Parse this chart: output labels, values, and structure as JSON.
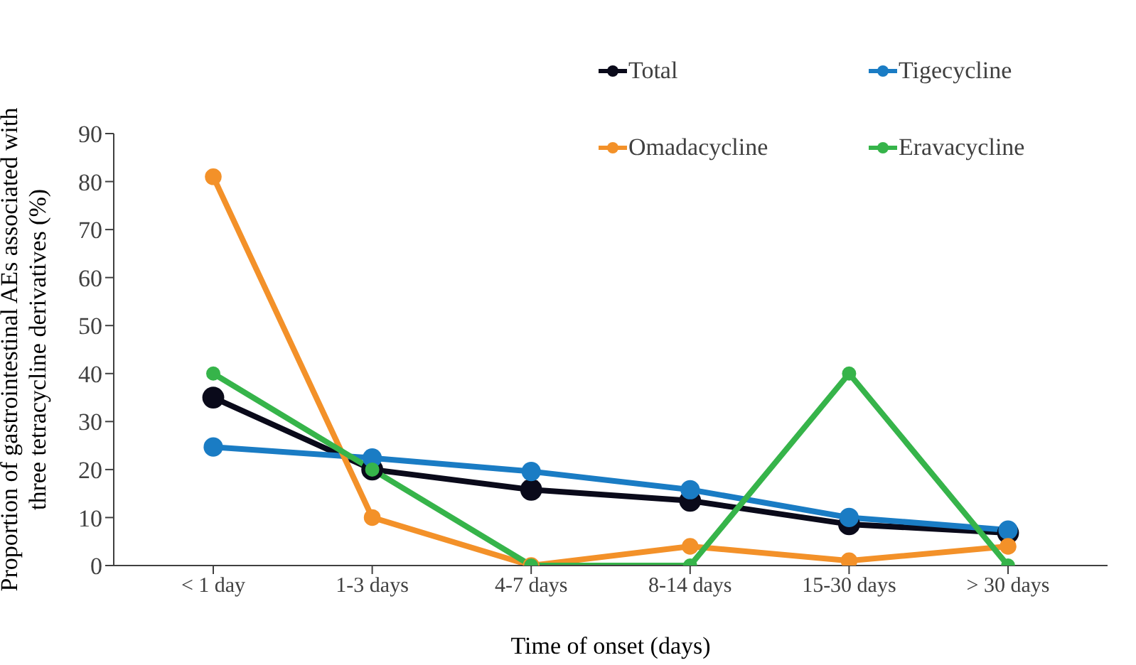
{
  "chart_data": {
    "type": "line",
    "xlabel": "Time of onset (days)",
    "ylabel": "Proportion of gastrointestinal AEs associated with three tetracycline derivatives (%)",
    "categories": [
      "< 1 day",
      "1-3 days",
      "4-7 days",
      "8-14 days",
      "15-30 days",
      "> 30 days"
    ],
    "series": [
      {
        "name": "Total",
        "color": "#0a0a1a",
        "values": [
          35,
          20,
          15.8,
          13.5,
          8.6,
          6.8
        ]
      },
      {
        "name": "Tigecycline",
        "color": "#1a7cc4",
        "values": [
          24.7,
          22.4,
          19.6,
          15.8,
          10,
          7.4
        ]
      },
      {
        "name": "Omadacycline",
        "color": "#f39129",
        "values": [
          81,
          10,
          0,
          4,
          1,
          4
        ]
      },
      {
        "name": "Eravacycline",
        "color": "#36b44a",
        "values": [
          40,
          20,
          0,
          0,
          40,
          0
        ]
      }
    ],
    "ylim": [
      0,
      90
    ],
    "yticks": [
      0,
      10,
      20,
      30,
      40,
      50,
      60,
      70,
      80,
      90
    ],
    "grid": false,
    "legend": "top right",
    "marker": "circle",
    "line_style": "solid"
  }
}
